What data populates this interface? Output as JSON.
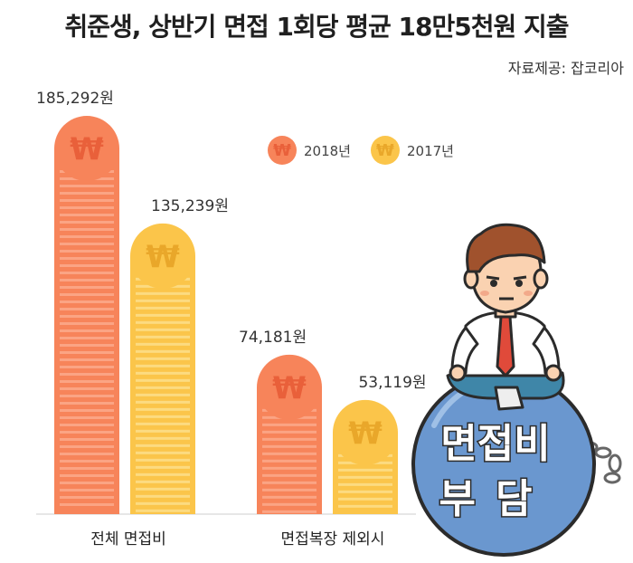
{
  "title": "취준생, 상반기 면접 1회당 평균 18만5천원 지출",
  "source": "자료제공: 잡코리아",
  "colors": {
    "y2018": "#f7845a",
    "y2017": "#fbc54a"
  },
  "legend": [
    {
      "label": "2018년",
      "glyph": "₩",
      "color": "#f7845a"
    },
    {
      "label": "2017년",
      "glyph": "₩",
      "color": "#fbc54a"
    }
  ],
  "chart_data": {
    "type": "bar",
    "categories": [
      "전체 면접비",
      "면접복장 제외시"
    ],
    "series": [
      {
        "name": "2018년",
        "values": [
          185292,
          74181
        ],
        "labels": [
          "185,292원",
          "74,181원"
        ]
      },
      {
        "name": "2017년",
        "values": [
          135239,
          53119
        ],
        "labels": [
          "135,239원",
          "53,119원"
        ]
      }
    ],
    "unit": "원"
  },
  "illustration": {
    "ball_text_line1": "면접비",
    "ball_text_line2": "부담"
  }
}
